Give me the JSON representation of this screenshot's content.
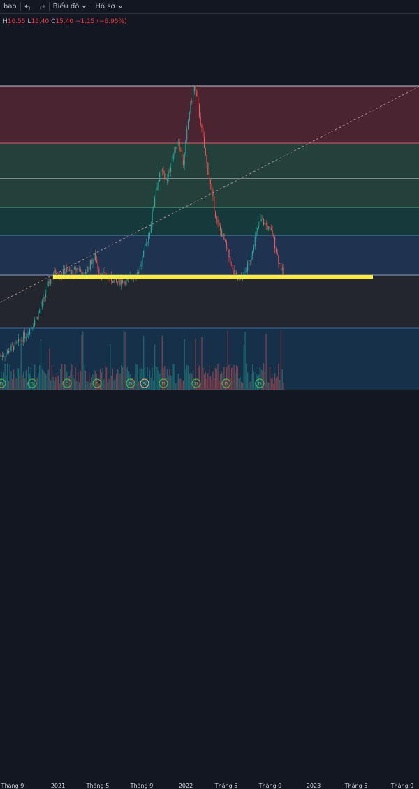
{
  "toolbar": {
    "alerts_label": "báo",
    "undo_icon": "undo-icon",
    "redo_icon": "redo-icon",
    "chart_type_label": "Biểu đồ",
    "profile_label": "Hồ sơ"
  },
  "ohlc": {
    "h_label": "H",
    "h_value": "16.55",
    "l_label": "L",
    "l_value": "15.40",
    "c_label": "C",
    "c_value": "15.40",
    "change": "−1.15 (−6.95%)"
  },
  "colors": {
    "background": "#131722",
    "up": "#26a69a",
    "down": "#ef5350",
    "support_line": "#ffeb3b"
  },
  "chart_data": {
    "type": "candlestick",
    "x_tick_labels": [
      "Tháng 9",
      "2021",
      "Tháng 5",
      "Tháng 9",
      "2022",
      "Tháng 5",
      "Tháng 9",
      "2023",
      "Tháng 5",
      "Tháng 9"
    ],
    "price_path": [
      4.6,
      4.8,
      5.2,
      5.5,
      6.0,
      6.5,
      7.2,
      8.0,
      9.2,
      10.5,
      11.2,
      11.0,
      11.3,
      11.1,
      11.5,
      10.8,
      11.6,
      12.4,
      11.0,
      10.8,
      10.6,
      10.3,
      10.5,
      10.4,
      10.9,
      11.2,
      12.8,
      14.5,
      17.5,
      19.0,
      18.2,
      20.0,
      21.5,
      19.5,
      23.5,
      25.6,
      23.0,
      20.0,
      17.5,
      15.0,
      14.0,
      12.6,
      11.0,
      10.4,
      11.0,
      12.2,
      14.0,
      15.2,
      14.7,
      14.1,
      12.2,
      10.9
    ],
    "annotations": {
      "support_level": 10.9,
      "trend_line": "dashed diagonal",
      "fibonacci_zones": 5
    },
    "event_markers": [
      "D",
      "D",
      "D",
      "D",
      "D",
      "S",
      "D",
      "D",
      "D",
      "D"
    ]
  }
}
